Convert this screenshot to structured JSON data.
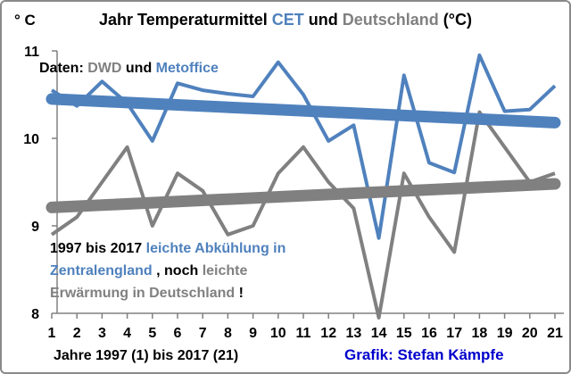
{
  "chart_data": {
    "type": "line",
    "title": {
      "part1": "Jahr Temperaturmittel ",
      "part2": "CET",
      "part3": " und ",
      "part4": "Deutschland",
      "part5": " (°C)"
    },
    "ylabel": "° C",
    "xlabel": "Jahre 1997 (1) bis 2017 (21)",
    "credit": "Grafik: Stefan Kämpfe",
    "ylim": [
      8,
      11
    ],
    "yticks": [
      "8",
      "9",
      "10",
      "11"
    ],
    "categories": [
      "1",
      "2",
      "3",
      "4",
      "5",
      "6",
      "7",
      "8",
      "9",
      "10",
      "11",
      "12",
      "13",
      "14",
      "15",
      "16",
      "17",
      "18",
      "19",
      "20",
      "21"
    ],
    "series": [
      {
        "key": "cet",
        "values": [
          10.55,
          10.37,
          10.65,
          10.4,
          9.97,
          10.63,
          10.55,
          10.51,
          10.48,
          10.87,
          10.5,
          9.97,
          10.15,
          8.86,
          10.72,
          9.72,
          9.61,
          10.95,
          10.31,
          10.33,
          10.6
        ],
        "trend": [
          10.45,
          10.18
        ],
        "color": "#4f81bd"
      },
      {
        "key": "de",
        "values": [
          8.9,
          9.1,
          9.5,
          9.9,
          9.0,
          9.6,
          9.4,
          8.9,
          9.0,
          9.6,
          9.9,
          9.5,
          9.2,
          7.95,
          9.6,
          9.1,
          8.7,
          10.3,
          9.9,
          9.5,
          9.6
        ],
        "trend": [
          9.21,
          9.48
        ],
        "color": "#808080"
      }
    ],
    "annotations": {
      "source": {
        "part1": "Daten: ",
        "part2": "DWD",
        "part3": " und ",
        "part4": "Metoffice"
      },
      "note": {
        "line1a": "1997 bis 2017 ",
        "line1b": "leichte Abkühlung in",
        "line2a": "Zentralengland",
        "line2b": " , noch ",
        "line2c": "leichte",
        "line3a": "Erwärmung in Deutschland",
        "line3b": " !"
      }
    },
    "colors": {
      "blue_text": "#4f81bd",
      "gray_text": "#808080",
      "black_text": "#000000",
      "credit": "#0000cc"
    },
    "grid": false
  }
}
